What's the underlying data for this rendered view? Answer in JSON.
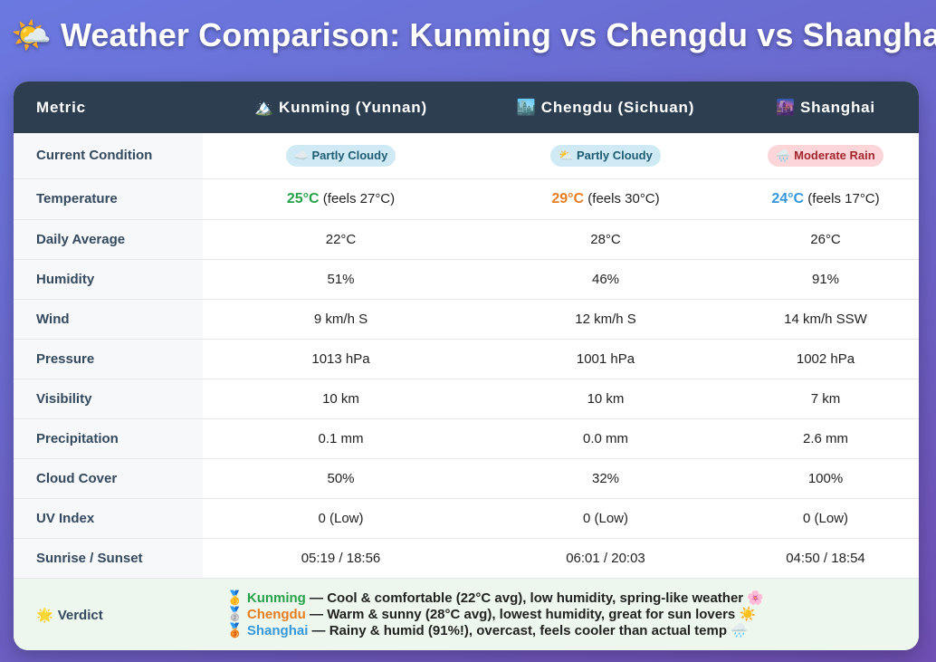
{
  "title": "Weather Comparison: Kunming vs Chengdu vs Shanghai",
  "title_icon": "sun-behind-cloud-icon",
  "header": {
    "metric": "Metric",
    "cities": [
      {
        "icon": "mountain-icon",
        "glyph": "🏔️",
        "name": "Kunming (Yunnan)"
      },
      {
        "icon": "city-icon",
        "glyph": "🏙️",
        "name": "Chengdu (Sichuan)"
      },
      {
        "icon": "night-city-icon",
        "glyph": "🌆",
        "name": "Shanghai"
      }
    ]
  },
  "conditions": {
    "label": "Current Condition",
    "values": [
      {
        "glyph": "☁️",
        "text": "Partly Cloudy",
        "style": "cloudy"
      },
      {
        "glyph": "⛅",
        "text": "Partly Cloudy",
        "style": "cloudy"
      },
      {
        "glyph": "🌧️",
        "text": "Moderate Rain",
        "style": "rain"
      }
    ]
  },
  "temperature": {
    "label": "Temperature",
    "values": [
      {
        "temp": "25°C",
        "feels": "(feels 27°C)",
        "color": "#27a24b"
      },
      {
        "temp": "29°C",
        "feels": "(feels 30°C)",
        "color": "#e67e22"
      },
      {
        "temp": "24°C",
        "feels": "(feels 17°C)",
        "color": "#3498db"
      }
    ]
  },
  "rows": [
    {
      "label": "Daily Average",
      "values": [
        "22°C",
        "28°C",
        "26°C"
      ]
    },
    {
      "label": "Humidity",
      "values": [
        "51%",
        "46%",
        "91%"
      ]
    },
    {
      "label": "Wind",
      "values": [
        "9 km/h S",
        "12 km/h S",
        "14 km/h SSW"
      ]
    },
    {
      "label": "Pressure",
      "values": [
        "1013 hPa",
        "1001 hPa",
        "1002 hPa"
      ]
    },
    {
      "label": "Visibility",
      "values": [
        "10 km",
        "10 km",
        "7 km"
      ]
    },
    {
      "label": "Precipitation",
      "values": [
        "0.1 mm",
        "0.0 mm",
        "2.6 mm"
      ]
    },
    {
      "label": "Cloud Cover",
      "values": [
        "50%",
        "32%",
        "100%"
      ]
    },
    {
      "label": "UV Index",
      "values": [
        "0 (Low)",
        "0 (Low)",
        "0 (Low)"
      ]
    },
    {
      "label": "Sunrise / Sunset",
      "values": [
        "05:19 / 18:56",
        "06:01 / 20:03",
        "04:50 / 18:54"
      ]
    }
  ],
  "verdict": {
    "label": "Verdict",
    "label_icon": "sun-icon",
    "lines": [
      {
        "medal": "🥇",
        "medal_icon": "gold-medal-icon",
        "city": "Kunming",
        "color": "#27a24b",
        "text": " — Cool & comfortable (22°C avg), low humidity, spring-like weather 🌸"
      },
      {
        "medal": "🥈",
        "medal_icon": "silver-medal-icon",
        "city": "Chengdu",
        "color": "#e67e22",
        "text": " — Warm & sunny (28°C avg), lowest humidity, great for sun lovers ☀️"
      },
      {
        "medal": "🥉",
        "medal_icon": "bronze-medal-icon",
        "city": "Shanghai",
        "color": "#3498db",
        "text": " — Rainy & humid (91%!), overcast, feels cooler than actual temp 🌧️"
      }
    ]
  }
}
